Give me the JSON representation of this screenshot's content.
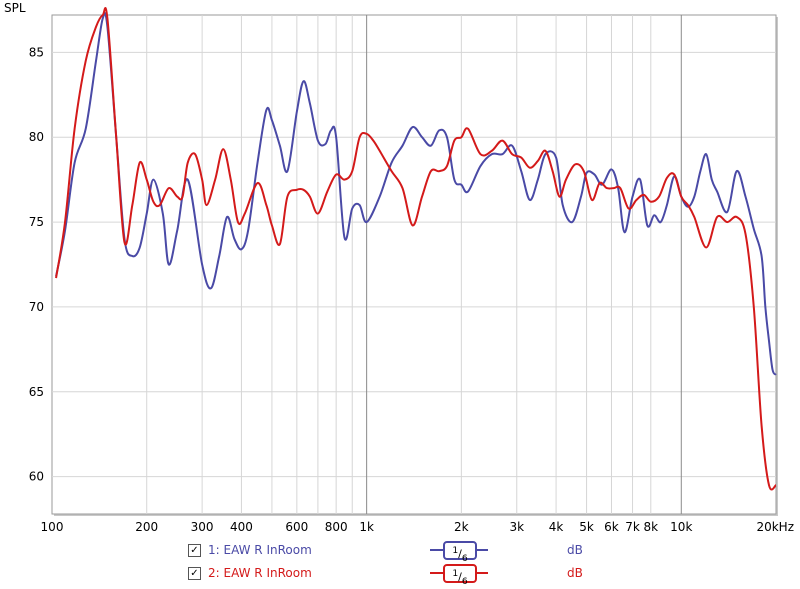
{
  "chart_data": {
    "type": "line",
    "ylabel": "SPL",
    "xscale": "log",
    "xlim": [
      100,
      20000
    ],
    "ylim": [
      57.8,
      87.2
    ],
    "grid": true,
    "y_ticks": [
      60,
      65,
      70,
      75,
      80,
      85
    ],
    "x_ticks": [
      {
        "value": 100,
        "label": "100",
        "major": true
      },
      {
        "value": 200,
        "label": "200",
        "major": false
      },
      {
        "value": 300,
        "label": "300",
        "major": false
      },
      {
        "value": 400,
        "label": "400",
        "major": false
      },
      {
        "value": 600,
        "label": "600",
        "major": false
      },
      {
        "value": 800,
        "label": "800",
        "major": false
      },
      {
        "value": 1000,
        "label": "1k",
        "major": true
      },
      {
        "value": 2000,
        "label": "2k",
        "major": false
      },
      {
        "value": 3000,
        "label": "3k",
        "major": false
      },
      {
        "value": 4000,
        "label": "4k",
        "major": false
      },
      {
        "value": 5000,
        "label": "5k",
        "major": false
      },
      {
        "value": 6000,
        "label": "6k",
        "major": false
      },
      {
        "value": 7000,
        "label": "7k",
        "major": false
      },
      {
        "value": 8000,
        "label": "8k",
        "major": false
      },
      {
        "value": 10000,
        "label": "10k",
        "major": true
      },
      {
        "value": 20000,
        "label": "20kHz",
        "major": false
      }
    ],
    "minor_grid": [
      500,
      700,
      900
    ],
    "series": [
      {
        "name": "1: EAW R InRoom",
        "color": "#4a4aa6",
        "x": [
          103,
          110,
          118,
          128,
          138,
          145,
          150,
          160,
          170,
          180,
          190,
          200,
          210,
          225,
          235,
          250,
          270,
          300,
          320,
          340,
          360,
          380,
          400,
          420,
          450,
          480,
          500,
          530,
          560,
          600,
          630,
          660,
          700,
          740,
          770,
          800,
          850,
          900,
          950,
          1000,
          1100,
          1200,
          1300,
          1400,
          1500,
          1600,
          1700,
          1800,
          1900,
          2000,
          2100,
          2300,
          2500,
          2700,
          2900,
          3100,
          3300,
          3500,
          3700,
          4000,
          4200,
          4500,
          4800,
          5000,
          5300,
          5600,
          6000,
          6300,
          6600,
          7000,
          7400,
          7800,
          8200,
          8600,
          9000,
          9500,
          10000,
          10500,
          11000,
          11500,
          12000,
          12500,
          13000,
          14000,
          15000,
          16000,
          17000,
          18000,
          18500,
          19000,
          19500,
          20000
        ],
        "y": [
          71.8,
          74.5,
          78.5,
          80.5,
          84.5,
          87.0,
          86.5,
          80.0,
          74.0,
          73.0,
          73.5,
          75.5,
          77.5,
          75.5,
          72.5,
          74.5,
          77.5,
          72.5,
          71.1,
          73.0,
          75.3,
          74.0,
          73.4,
          74.5,
          78.5,
          81.6,
          81.0,
          79.5,
          78.0,
          81.5,
          83.3,
          82.0,
          79.8,
          79.6,
          80.4,
          80.0,
          74.1,
          75.8,
          76.0,
          75.0,
          76.5,
          78.5,
          79.5,
          80.6,
          80.0,
          79.5,
          80.4,
          80.0,
          77.5,
          77.2,
          76.8,
          78.3,
          79.0,
          79.0,
          79.5,
          78.0,
          76.3,
          77.5,
          79.0,
          78.8,
          76.0,
          75.0,
          76.5,
          77.9,
          77.8,
          77.2,
          78.1,
          77.0,
          74.4,
          76.5,
          77.5,
          74.8,
          75.4,
          75.0,
          76.0,
          77.7,
          76.5,
          75.9,
          76.5,
          78.0,
          79.0,
          77.5,
          76.8,
          75.6,
          78.0,
          76.5,
          74.6,
          73.0,
          70.0,
          68.0,
          66.3,
          66.0
        ]
      },
      {
        "name": "2: EAW R InRoom",
        "color": "#d41a1a",
        "x": [
          103,
          110,
          118,
          128,
          138,
          145,
          150,
          160,
          170,
          180,
          190,
          200,
          210,
          220,
          235,
          250,
          260,
          270,
          285,
          300,
          310,
          330,
          350,
          370,
          390,
          410,
          450,
          480,
          500,
          530,
          560,
          600,
          630,
          660,
          700,
          750,
          800,
          850,
          900,
          950,
          1000,
          1050,
          1100,
          1200,
          1300,
          1400,
          1500,
          1600,
          1700,
          1800,
          1900,
          2000,
          2100,
          2300,
          2500,
          2700,
          2900,
          3100,
          3300,
          3500,
          3700,
          3900,
          4100,
          4300,
          4600,
          4900,
          5200,
          5500,
          5800,
          6100,
          6400,
          6800,
          7200,
          7600,
          8000,
          8500,
          9000,
          9500,
          10000,
          10500,
          11000,
          12000,
          13000,
          14000,
          15000,
          16000,
          17000,
          18000,
          19000,
          20000
        ],
        "y": [
          71.7,
          75.0,
          80.5,
          84.5,
          86.5,
          87.2,
          87.0,
          80.0,
          73.8,
          76.0,
          78.5,
          77.5,
          76.2,
          76.0,
          77.0,
          76.5,
          76.5,
          78.5,
          79.0,
          77.5,
          76.0,
          77.5,
          79.3,
          77.5,
          75.0,
          75.5,
          77.3,
          76.0,
          74.8,
          73.7,
          76.5,
          76.9,
          76.9,
          76.5,
          75.5,
          76.8,
          77.8,
          77.5,
          78.0,
          80.0,
          80.2,
          79.8,
          79.2,
          78.0,
          77.0,
          74.8,
          76.5,
          78.0,
          78.0,
          78.3,
          79.8,
          80.0,
          80.5,
          79.0,
          79.2,
          79.8,
          79.0,
          78.8,
          78.2,
          78.6,
          79.2,
          78.0,
          76.5,
          77.5,
          78.4,
          78.0,
          76.3,
          77.3,
          77.0,
          77.0,
          77.0,
          75.8,
          76.3,
          76.6,
          76.2,
          76.5,
          77.6,
          77.8,
          76.5,
          76.0,
          75.3,
          73.5,
          75.3,
          75.0,
          75.3,
          74.3,
          70.0,
          63.0,
          59.5,
          59.5
        ]
      }
    ]
  },
  "legend": [
    {
      "checkbox": "✓",
      "name": "1: EAW R InRoom",
      "smoothing_num": "1",
      "smoothing_den": "6",
      "unit": "dB",
      "color": "#4a4aa6"
    },
    {
      "checkbox": "✓",
      "name": "2: EAW R InRoom",
      "smoothing_num": "1",
      "smoothing_den": "6",
      "unit": "dB",
      "color": "#d41a1a"
    }
  ]
}
